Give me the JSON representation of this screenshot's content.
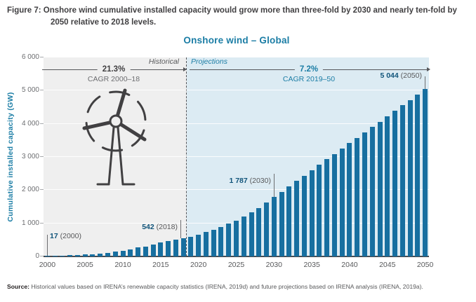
{
  "figure": {
    "caption_label": "Figure 7:",
    "caption_text": "Onshore wind cumulative installed capacity would grow more than three-fold by 2030 and nearly ten-fold by 2050 relative to 2018 levels."
  },
  "chart": {
    "title": "Onshore wind – Global",
    "y_axis_label": "Cumulative installed capacity (GW)",
    "zone_historical": "Historical",
    "zone_projections": "Projections",
    "hist_cagr_value": "21.3%",
    "hist_cagr_label": "CAGR 2000–18",
    "proj_cagr_value": "7.2%",
    "proj_cagr_label": "CAGR 2019–50",
    "callouts": {
      "c2000": {
        "value": "17",
        "year": " (2000)"
      },
      "c2018": {
        "value": "542",
        "year": " (2018)"
      },
      "c2030": {
        "value": "1 787",
        "year": " (2030)"
      },
      "c2050": {
        "value": "5 044",
        "year": " (2050)"
      }
    }
  },
  "source": {
    "label": "Source:",
    "text": " Historical values based on IRENA’s renewable capacity statistics (IRENA, 2019d) and future projections based on IRENA analysis (IRENA, 2019a)."
  },
  "colors": {
    "bar": "#176FA0",
    "historical_bg": "#EFEFEF",
    "projections_bg": "#DCEBF3",
    "title_teal": "#1B7DA5",
    "value_navy": "#10547A",
    "gray_text": "#6D6E71",
    "dark_text": "#414042"
  },
  "chart_data": {
    "type": "bar",
    "title": "Onshore wind – Global",
    "xlabel": "",
    "ylabel": "Cumulative installed capacity (GW)",
    "ylim": [
      0,
      6000
    ],
    "grid": true,
    "y_ticks": [
      "0",
      "1 000",
      "2 000",
      "3 000",
      "4 000",
      "5 000",
      "6 000"
    ],
    "x_tick_labels": [
      "2000",
      "2005",
      "2010",
      "2015",
      "2020",
      "2025",
      "2030",
      "2035",
      "2040",
      "2045",
      "2050"
    ],
    "historical_years": "2000-2018",
    "projection_years": "2019-2050",
    "years": [
      2000,
      2001,
      2002,
      2003,
      2004,
      2005,
      2006,
      2007,
      2008,
      2009,
      2010,
      2011,
      2012,
      2013,
      2014,
      2015,
      2016,
      2017,
      2018,
      2019,
      2020,
      2021,
      2022,
      2023,
      2024,
      2025,
      2026,
      2027,
      2028,
      2029,
      2030,
      2031,
      2032,
      2033,
      2034,
      2035,
      2036,
      2037,
      2038,
      2039,
      2040,
      2041,
      2042,
      2043,
      2044,
      2045,
      2046,
      2047,
      2048,
      2049,
      2050
    ],
    "values": [
      17,
      24,
      31,
      40,
      48,
      59,
      74,
      92,
      116,
      150,
      178,
      220,
      267,
      300,
      349,
      417,
      467,
      514,
      542,
      599,
      661,
      730,
      807,
      891,
      984,
      1087,
      1201,
      1326,
      1465,
      1618,
      1787,
      1950,
      2113,
      2276,
      2439,
      2602,
      2765,
      2927,
      3090,
      3253,
      3416,
      3579,
      3742,
      3904,
      4067,
      4230,
      4393,
      4556,
      4718,
      4881,
      5044
    ],
    "annotations": [
      {
        "year": 2000,
        "label": "17 (2000)"
      },
      {
        "year": 2018,
        "label": "542 (2018)"
      },
      {
        "year": 2030,
        "label": "1 787 (2030)"
      },
      {
        "year": 2050,
        "label": "5 044 (2050)"
      },
      {
        "span": "2000-2018",
        "label": "21.3% CAGR 2000–18"
      },
      {
        "span": "2019-2050",
        "label": "7.2% CAGR 2019–50"
      }
    ]
  }
}
